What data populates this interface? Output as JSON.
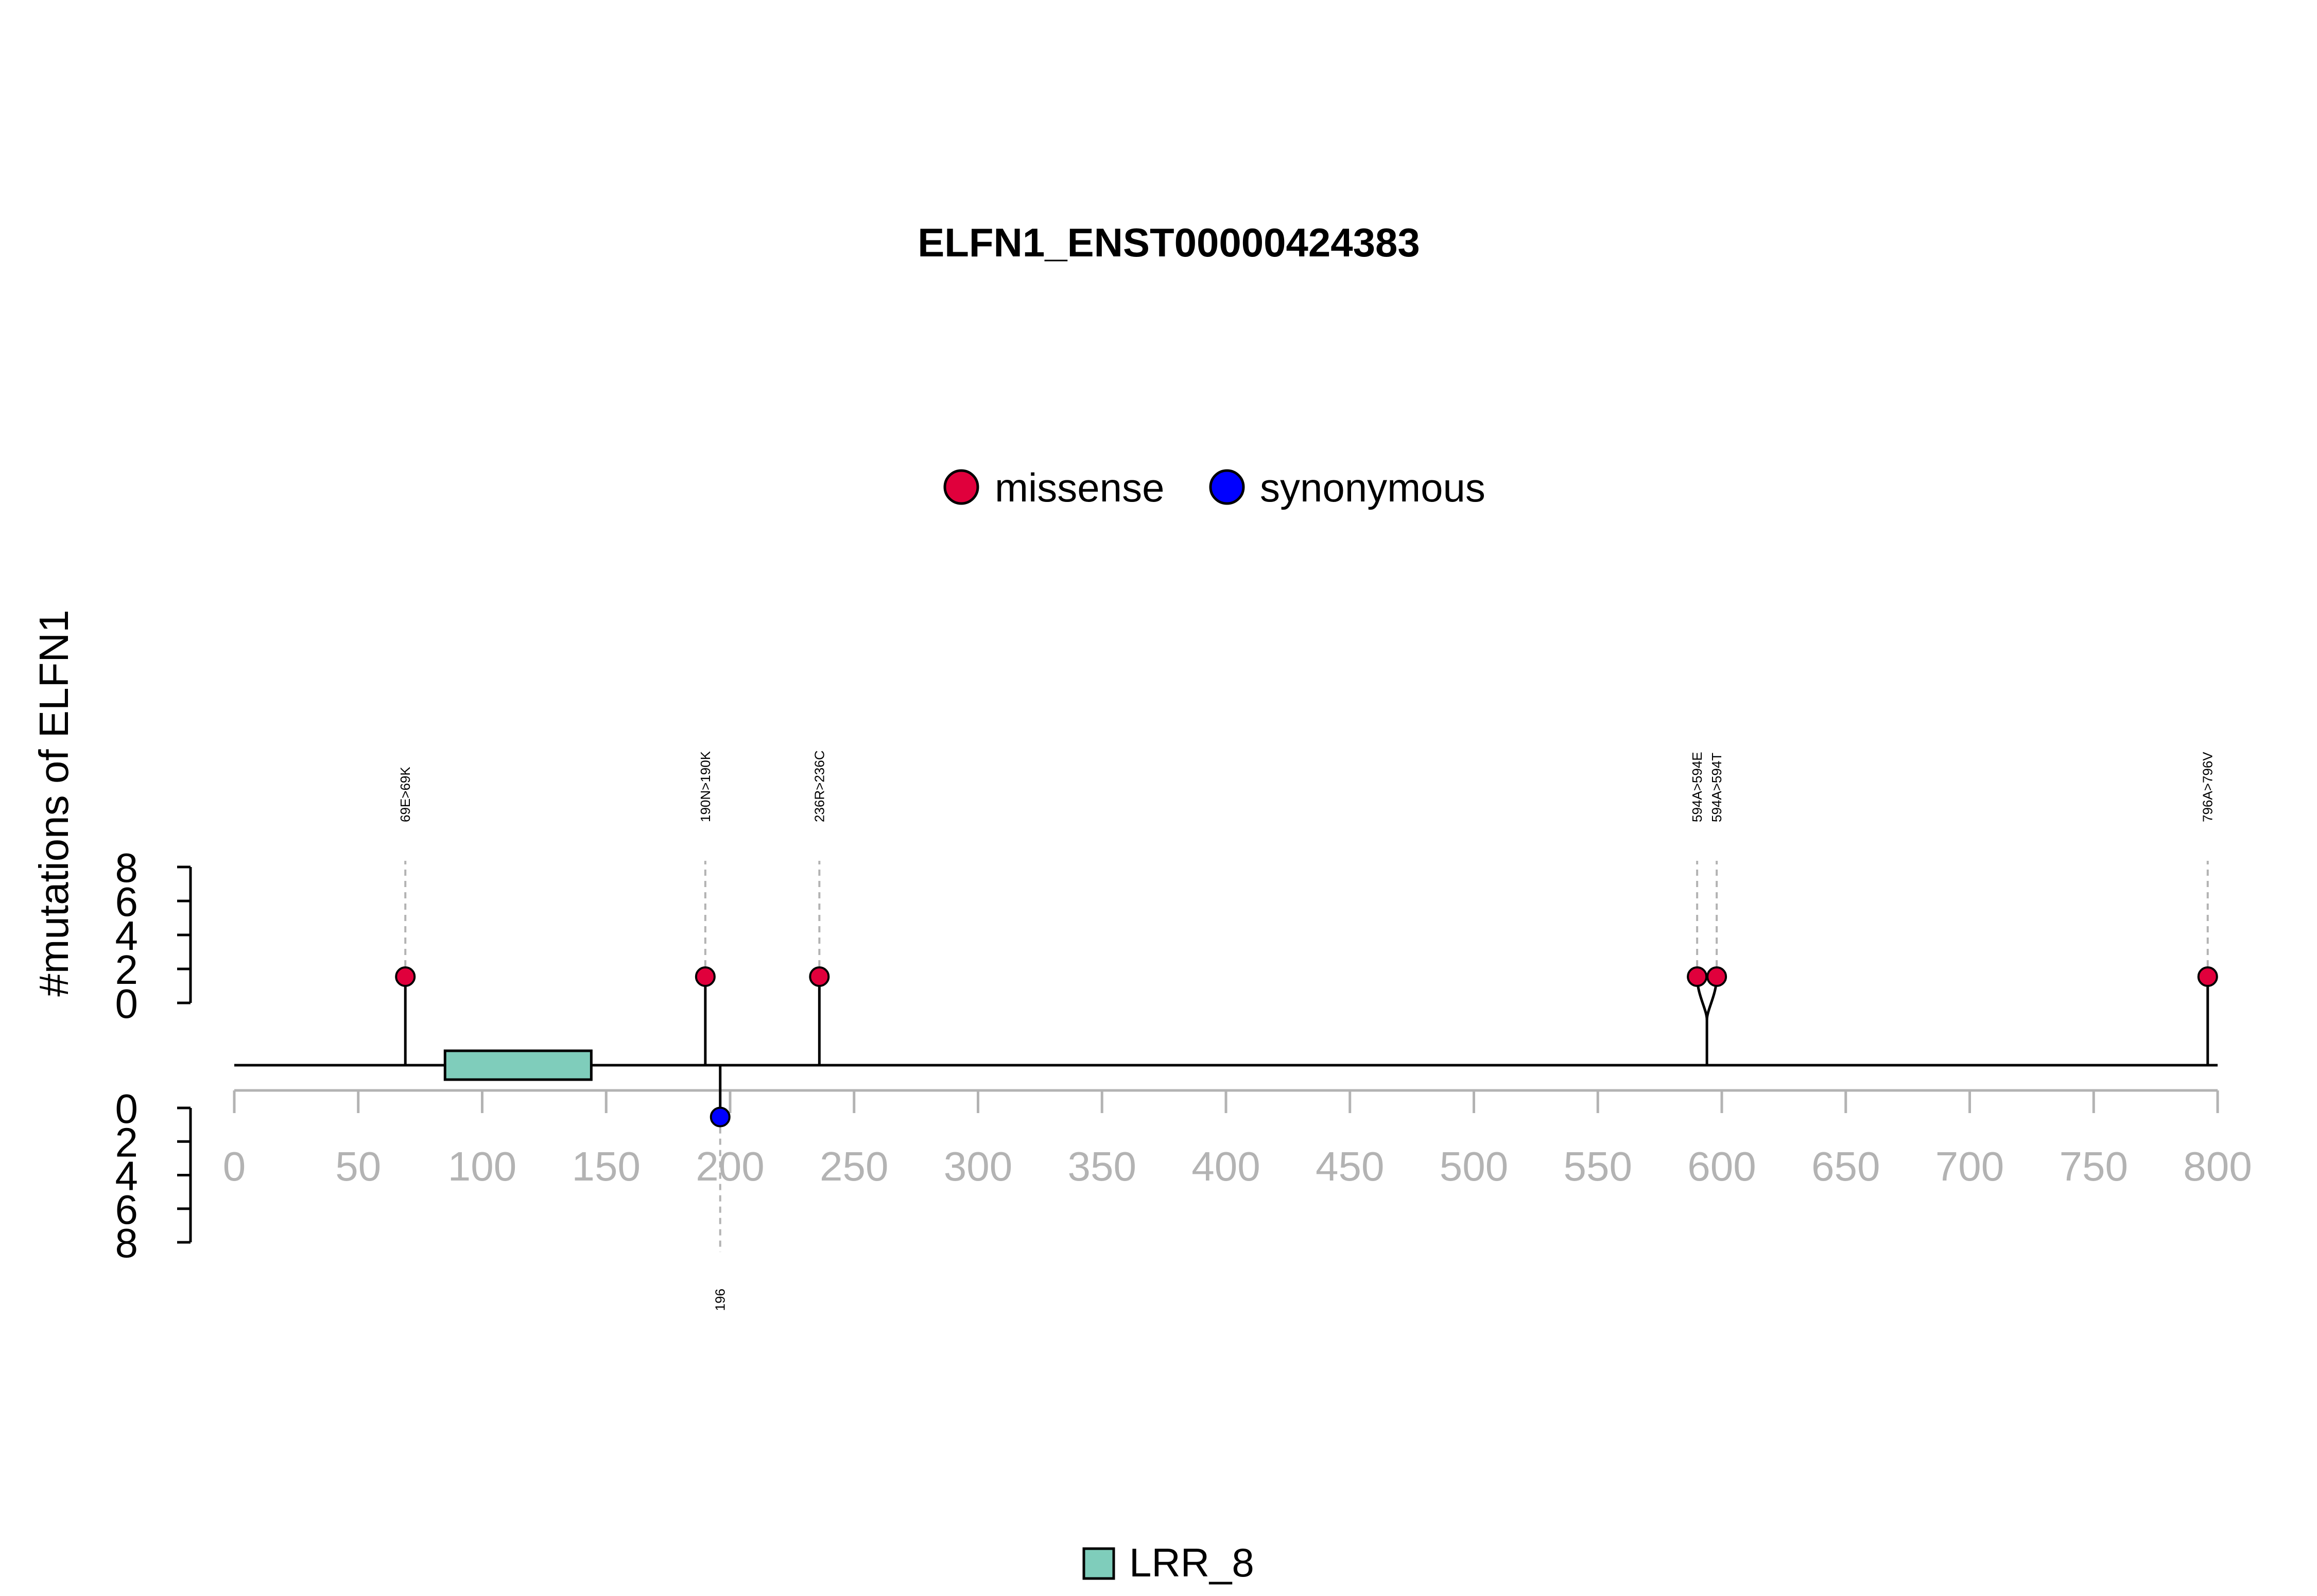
{
  "chart_data": {
    "type": "lollipop",
    "title": "ELFN1_ENST00000424383",
    "ylabel": "#mutations of ELFN1",
    "xlim": [
      0,
      800
    ],
    "x_ticks": [
      0,
      50,
      100,
      150,
      200,
      250,
      300,
      350,
      400,
      450,
      500,
      550,
      600,
      650,
      700,
      750,
      800
    ],
    "ylim_upper": [
      0,
      8
    ],
    "ylim_lower": [
      0,
      8
    ],
    "y_ticks": [
      0,
      2,
      4,
      6,
      8
    ],
    "legend_top": [
      {
        "name": "missense",
        "color": "#e0003c"
      },
      {
        "name": "synonymous",
        "color": "#0000ff"
      }
    ],
    "domains": [
      {
        "name": "LRR_8",
        "start": 85,
        "end": 144,
        "color": "#7fcdbb"
      }
    ],
    "mutations": [
      {
        "label": "69E>69K",
        "position": 69,
        "count": 1,
        "type": "missense",
        "side": "top"
      },
      {
        "label": "190N>190K",
        "position": 190,
        "count": 1,
        "type": "missense",
        "side": "top"
      },
      {
        "label": "236R>236C",
        "position": 236,
        "count": 1,
        "type": "missense",
        "side": "top"
      },
      {
        "label": "594A>594E",
        "position": 594,
        "count": 1,
        "type": "missense",
        "side": "top"
      },
      {
        "label": "594A>594T",
        "position": 594,
        "count": 1,
        "type": "missense",
        "side": "top"
      },
      {
        "label": "796A>796V",
        "position": 796,
        "count": 1,
        "type": "missense",
        "side": "top"
      },
      {
        "label": "196",
        "position": 196,
        "count": 1,
        "type": "synonymous",
        "side": "bottom"
      }
    ]
  }
}
